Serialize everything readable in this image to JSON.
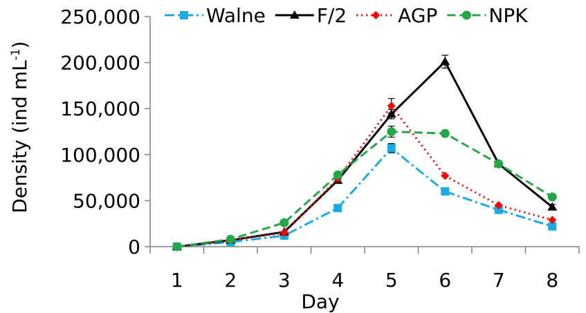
{
  "chart_data": {
    "type": "line",
    "xlabel": "Day",
    "ylabel": "Density (ind mL",
    "ylabel_superscript": "-1",
    "ylabel_suffix": ")",
    "ylim": [
      0,
      250000
    ],
    "yticks": [
      0,
      50000,
      100000,
      150000,
      200000,
      250000
    ],
    "ytick_labels": [
      "0",
      "50,000",
      "100,000",
      "150,000",
      "200,000",
      "250,000"
    ],
    "x": [
      1,
      2,
      3,
      4,
      5,
      6,
      7,
      8
    ],
    "xtick_labels": [
      "1",
      "2",
      "3",
      "4",
      "5",
      "6",
      "7",
      "8"
    ],
    "grid": false,
    "legend_position": "top",
    "series": [
      {
        "name": "Walne",
        "color": "#1aabe6",
        "line": "dash-dot",
        "marker": "square",
        "values": [
          0,
          5000,
          12000,
          42000,
          107000,
          60000,
          40000,
          22000
        ],
        "errors": [
          0,
          0,
          0,
          0,
          5000,
          0,
          0,
          0
        ]
      },
      {
        "name": "F/2",
        "color": "#000000",
        "line": "solid",
        "marker": "triangle",
        "values": [
          0,
          7000,
          16000,
          72000,
          144000,
          201000,
          90000,
          43000
        ],
        "errors": [
          0,
          0,
          0,
          0,
          5000,
          7000,
          0,
          3000
        ]
      },
      {
        "name": "AGP",
        "color": "#ff0000",
        "line": "dotted",
        "marker": "diamond",
        "values": [
          0,
          7000,
          15000,
          74000,
          153000,
          77000,
          45000,
          29000
        ],
        "errors": [
          0,
          0,
          0,
          0,
          8000,
          0,
          0,
          0
        ]
      },
      {
        "name": "NPK",
        "color": "#22a847",
        "line": "dashed",
        "marker": "circle",
        "values": [
          0,
          8000,
          26000,
          78000,
          125000,
          123000,
          90000,
          54000
        ],
        "errors": [
          0,
          0,
          0,
          0,
          6000,
          0,
          0,
          0
        ]
      }
    ]
  }
}
